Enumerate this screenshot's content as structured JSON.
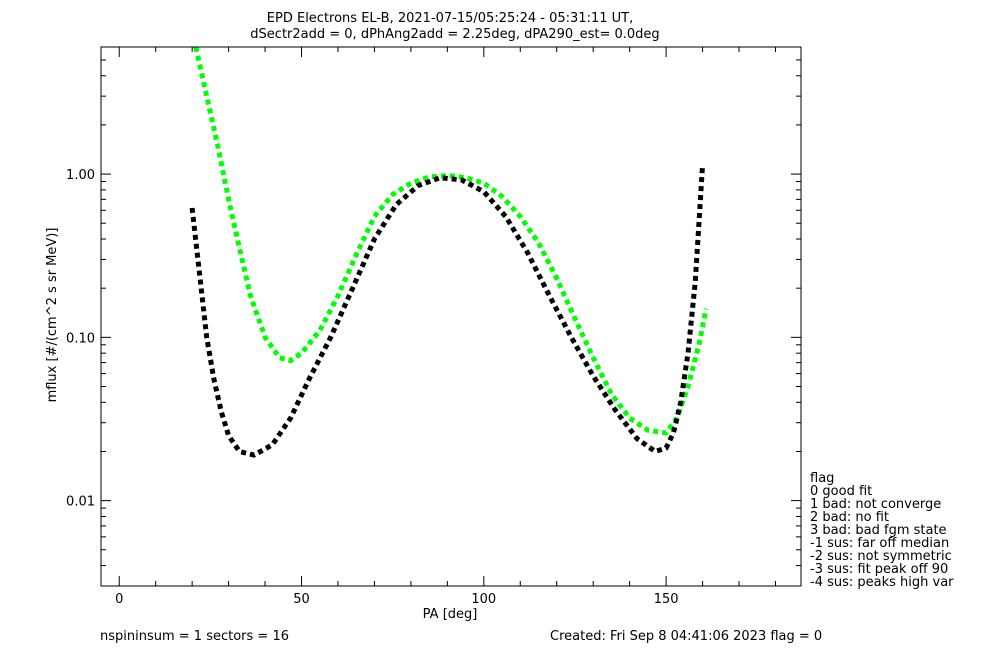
{
  "chart_data": {
    "type": "line",
    "title": "EPD Electrons EL-B, 2021-07-15/05:25:24 - 05:31:11 UT,",
    "subtitle": "dSectr2add = 0, dPhAng2add = 2.25deg, dPA290_est=   0.0deg",
    "xlabel": "PA [deg]",
    "ylabel": "mflux [#/(cm^2 s sr MeV)]",
    "xlim": [
      -5,
      187
    ],
    "ylim": [
      0.003,
      6.0
    ],
    "yscale": "log",
    "x_ticks": [
      0,
      50,
      100,
      150
    ],
    "x_tick_labels": [
      "0",
      "50",
      "100",
      "150"
    ],
    "y_ticks": [
      0.01,
      0.1,
      1.0
    ],
    "y_tick_labels": [
      "0.01",
      "0.10",
      "1.00"
    ],
    "colors": {
      "red": "#e00000",
      "blue": "#0000ff",
      "green": "#00ff00",
      "black": "#000000"
    },
    "series": [
      {
        "color": "green",
        "style": "dashed-thick",
        "x": [
          21,
          24,
          27,
          30,
          33,
          36,
          40,
          44,
          47,
          50,
          55,
          60,
          65,
          70,
          75,
          80,
          85,
          90,
          95,
          100,
          105,
          110,
          115,
          120,
          125,
          130,
          135,
          140,
          145,
          150,
          153,
          156,
          159,
          161
        ],
        "y": [
          6.0,
          3.0,
          1.5,
          0.7,
          0.35,
          0.18,
          0.1,
          0.075,
          0.072,
          0.08,
          0.11,
          0.18,
          0.32,
          0.55,
          0.75,
          0.88,
          0.96,
          0.98,
          0.95,
          0.88,
          0.73,
          0.55,
          0.38,
          0.23,
          0.13,
          0.075,
          0.045,
          0.032,
          0.027,
          0.026,
          0.032,
          0.05,
          0.09,
          0.15
        ]
      },
      {
        "color": "black",
        "style": "dashed-thick",
        "x": [
          20,
          22,
          24,
          26,
          28,
          30,
          33,
          37,
          42,
          47,
          52,
          58,
          64,
          70,
          76,
          82,
          88,
          94,
          100,
          106,
          112,
          118,
          124,
          130,
          136,
          142,
          147,
          150,
          152,
          154,
          156,
          158,
          160
        ],
        "y": [
          0.62,
          0.25,
          0.1,
          0.055,
          0.035,
          0.025,
          0.02,
          0.019,
          0.022,
          0.032,
          0.055,
          0.1,
          0.2,
          0.4,
          0.65,
          0.85,
          0.95,
          0.92,
          0.78,
          0.55,
          0.33,
          0.18,
          0.1,
          0.058,
          0.036,
          0.024,
          0.02,
          0.021,
          0.026,
          0.04,
          0.08,
          0.22,
          1.15
        ]
      }
    ],
    "legend": {
      "title": "flag",
      "placement": "right-bottom",
      "entries": [
        "0 good fit",
        "1 bad: not converge",
        "2 bad: no fit",
        "3 bad: bad fgm state",
        "-1 sus: far off median",
        "-2 sus: not symmetric",
        "-3 sus: fit peak off 90",
        "-4 sus: peaks high var"
      ]
    },
    "footer_left": "nspininsum =  1  sectors = 16",
    "footer_right": "Created: Fri Sep  8 04:41:06 2023   flag = 0"
  }
}
